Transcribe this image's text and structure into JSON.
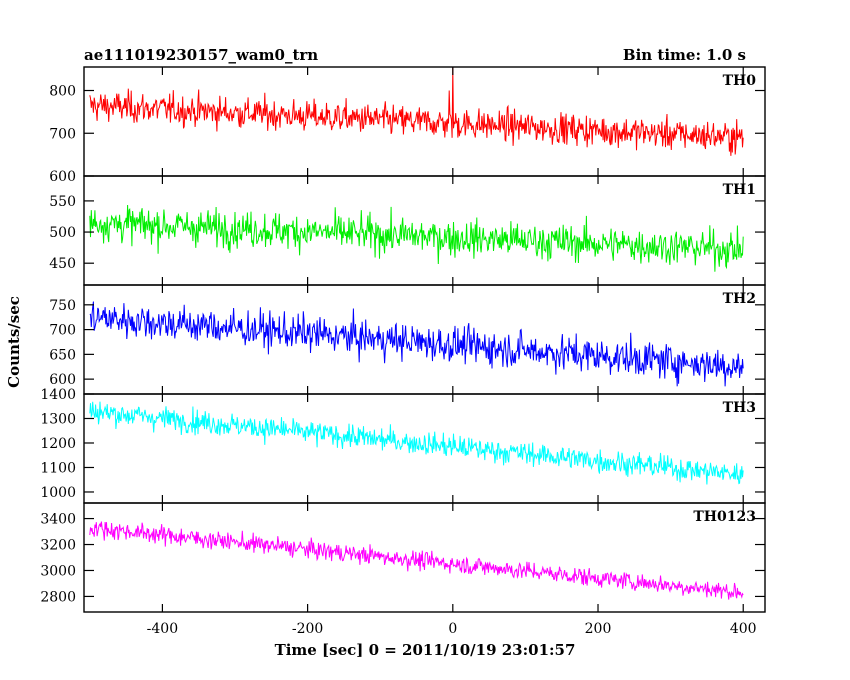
{
  "chart_data": {
    "type": "line",
    "title": "ae111019230157_wam0_trn",
    "subtitle": "Bin time: 1.0 s",
    "xlabel": "Time [sec] 0 = 2011/10/19 23:01:57",
    "ylabel": "Counts/sec",
    "xlim": [
      -508,
      430
    ],
    "xticks": [
      -400,
      -200,
      0,
      200,
      400
    ],
    "grid": false,
    "panels": [
      {
        "name": "TH0",
        "color": "#ff0000",
        "ylim": [
          600,
          855
        ],
        "yticks": [
          600,
          700,
          800
        ],
        "trend": {
          "x": [
            -500,
            400
          ],
          "y": [
            765,
            690
          ]
        },
        "noise": 34,
        "spikes": [
          {
            "x": 0,
            "y": 855
          },
          {
            "x": -5,
            "y": 800
          }
        ]
      },
      {
        "name": "TH1",
        "color": "#00ee00",
        "ylim": [
          415,
          590
        ],
        "yticks": [
          450,
          500,
          550
        ],
        "trend": {
          "x": [
            -500,
            400
          ],
          "y": [
            515,
            472
          ]
        },
        "noise": 27,
        "spikes": []
      },
      {
        "name": "TH2",
        "color": "#0000ff",
        "ylim": [
          570,
          790
        ],
        "yticks": [
          600,
          650,
          700,
          750
        ],
        "trend": {
          "x": [
            -500,
            400
          ],
          "y": [
            725,
            625
          ]
        },
        "noise": 34,
        "spikes": []
      },
      {
        "name": "TH3",
        "color": "#00ffff",
        "ylim": [
          955,
          1400
        ],
        "yticks": [
          1000,
          1100,
          1200,
          1300,
          1400
        ],
        "trend": {
          "x": [
            -500,
            400
          ],
          "y": [
            1330,
            1070
          ]
        },
        "noise": 45,
        "spikes": []
      },
      {
        "name": "TH0123",
        "color": "#ff00ff",
        "ylim": [
          2680,
          3520
        ],
        "yticks": [
          2800,
          3000,
          3200,
          3400
        ],
        "trend": {
          "x": [
            -500,
            400
          ],
          "y": [
            3330,
            2830
          ]
        },
        "noise": 65,
        "spikes": []
      }
    ]
  }
}
